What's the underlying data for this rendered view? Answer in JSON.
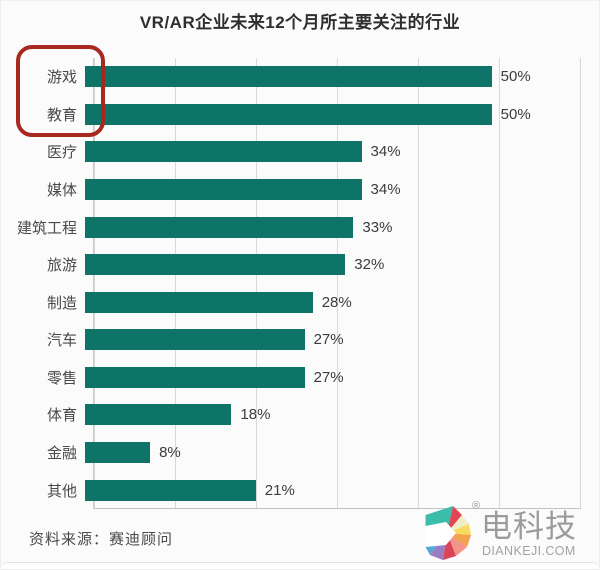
{
  "page": {
    "source_note": "资料来源：赛迪顾问"
  },
  "chart_data": {
    "type": "bar",
    "orientation": "horizontal",
    "title": "VR/AR企业未来12个月所主要关注的行业",
    "categories": [
      "游戏",
      "教育",
      "医疗",
      "媒体",
      "建筑工程",
      "旅游",
      "制造",
      "汽车",
      "零售",
      "体育",
      "金融",
      "其他"
    ],
    "values": [
      50,
      50,
      34,
      34,
      33,
      32,
      28,
      27,
      27,
      18,
      8,
      21
    ],
    "unit": "%",
    "value_labels": [
      "50%",
      "50%",
      "34%",
      "34%",
      "33%",
      "32%",
      "28%",
      "27%",
      "27%",
      "18%",
      "8%",
      "21%"
    ],
    "xlim": [
      0,
      60
    ],
    "gridline_interval": 10,
    "grid": true,
    "legend": false,
    "bar_color": "#0e7467",
    "highlight": {
      "categories": [
        "游戏",
        "教育"
      ],
      "box_color": "#a6281f"
    }
  },
  "watermark": {
    "registered_mark": "®",
    "brand": "电科技",
    "domain": "DIANKEJI.COM",
    "logo_icon": "pinwheel-d-logo",
    "logo_colors": [
      "#3cbcab",
      "#e24553",
      "#f0eec6",
      "#f8da5e",
      "#f3a24f",
      "#f2948a",
      "#da4456",
      "#9b7cc3",
      "#57a6db"
    ]
  }
}
